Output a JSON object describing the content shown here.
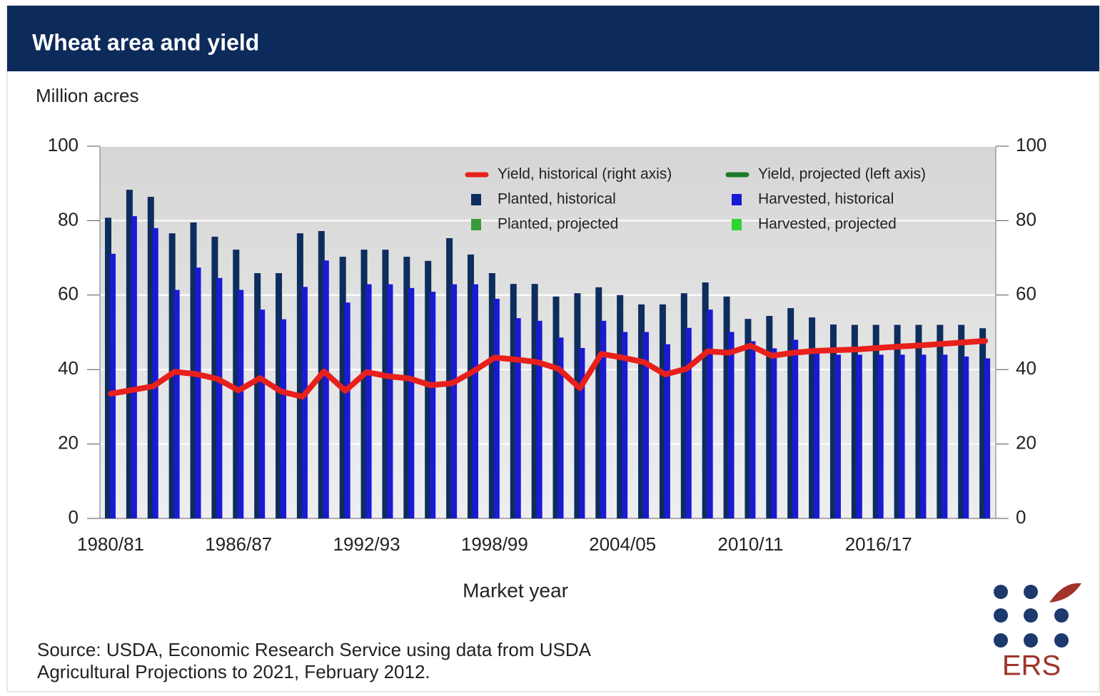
{
  "chart_data": {
    "type": "bar",
    "title": "Wheat area and yield",
    "y_label": "Million acres",
    "x_label": "Market year",
    "source": [
      "Source: USDA, Economic Research Service using data from USDA",
      "Agricultural Projections to 2021, February 2012."
    ],
    "logo": "ERS",
    "categories": [
      "1980/81",
      null,
      null,
      null,
      null,
      null,
      "1986/87",
      null,
      null,
      null,
      null,
      null,
      "1992/93",
      null,
      null,
      null,
      null,
      null,
      "1998/99",
      null,
      null,
      null,
      null,
      null,
      "2004/05",
      null,
      null,
      null,
      null,
      null,
      "2010/11",
      null,
      null,
      null,
      null,
      null,
      "2016/17",
      null,
      null,
      null,
      null,
      null
    ],
    "ylim": [
      0,
      100
    ],
    "yticks": [
      0,
      20,
      40,
      60,
      80,
      100
    ],
    "y2lim": [
      0,
      100
    ],
    "y2ticks": [
      0,
      20,
      40,
      60,
      80,
      100
    ],
    "grid": true,
    "legend": "top-right",
    "series": [
      {
        "name": "Yield, historical (right axis)",
        "color": "#e8201c",
        "mark": "line",
        "axis": "y2",
        "values": [
          33.5,
          34.5,
          35.5,
          39.4,
          38.8,
          37.5,
          34.4,
          37.7,
          34.1,
          32.7,
          39.5,
          34.3,
          39.3,
          38.2,
          37.6,
          35.8,
          36.3,
          39.5,
          43.2,
          42.7,
          42.0,
          40.2,
          35.0,
          44.2,
          43.2,
          42.0,
          38.7,
          40.2,
          44.9,
          44.5,
          46.4,
          43.7,
          44.5,
          45.0,
          45.2,
          45.4,
          45.8,
          46.2,
          46.5,
          46.9,
          47.3,
          47.7
        ]
      },
      {
        "name": "Yield, projected (left axis)",
        "color": "#1e7a2a",
        "mark": "line",
        "values": [
          null,
          null,
          null,
          null,
          null,
          null,
          null,
          null,
          null,
          null,
          null,
          null,
          null,
          null,
          null,
          null,
          null,
          null,
          null,
          null,
          null,
          null,
          null,
          null,
          null,
          null,
          null,
          null,
          null,
          null,
          null,
          null,
          null,
          null,
          null,
          null,
          null,
          null,
          null,
          null,
          null,
          null
        ]
      },
      {
        "name": "Planted, historical",
        "color": "#0d2d5e",
        "mark": "bar",
        "values": [
          80.8,
          88.3,
          86.4,
          76.6,
          79.5,
          75.7,
          72.2,
          65.9,
          65.9,
          76.6,
          77.2,
          70.3,
          72.2,
          72.2,
          70.3,
          69.2,
          75.3,
          70.9,
          65.9,
          63.0,
          63.0,
          59.6,
          60.5,
          62.1,
          60.0,
          57.5,
          57.5,
          60.5,
          63.4,
          59.6,
          53.6,
          54.4,
          56.5,
          54.0,
          52.1,
          52.0,
          52.0,
          52.0,
          52.0,
          52.0,
          52.0,
          51.1
        ]
      },
      {
        "name": "Harvested, historical",
        "color": "#1a1ad6",
        "mark": "bar",
        "values": [
          71.1,
          81.2,
          78.0,
          61.4,
          67.4,
          64.6,
          61.4,
          56.1,
          53.5,
          62.2,
          69.3,
          58.0,
          62.9,
          62.9,
          61.9,
          60.9,
          62.9,
          62.9,
          59.0,
          53.8,
          53.1,
          48.6,
          45.8,
          53.1,
          50.1,
          50.1,
          46.8,
          51.2,
          56.1,
          50.1,
          47.6,
          45.7,
          48.0,
          45.0,
          44.0,
          44.0,
          44.0,
          44.0,
          44.0,
          44.0,
          43.5,
          43.0
        ]
      },
      {
        "name": "Planted, projected",
        "color": "#3a9a3a",
        "mark": "bar",
        "values": [
          null,
          null,
          null,
          null,
          null,
          null,
          null,
          null,
          null,
          null,
          null,
          null,
          null,
          null,
          null,
          null,
          null,
          null,
          null,
          null,
          null,
          null,
          null,
          null,
          null,
          null,
          null,
          null,
          null,
          null,
          null,
          null,
          null,
          null,
          null,
          null,
          null,
          null,
          null,
          null,
          null,
          null
        ]
      },
      {
        "name": "Harvested, projected",
        "color": "#2ed42e",
        "mark": "bar",
        "values": [
          null,
          null,
          null,
          null,
          null,
          null,
          null,
          null,
          null,
          null,
          null,
          null,
          null,
          null,
          null,
          null,
          null,
          null,
          null,
          null,
          null,
          null,
          null,
          null,
          null,
          null,
          null,
          null,
          null,
          null,
          null,
          null,
          null,
          null,
          null,
          null,
          null,
          null,
          null,
          null,
          null,
          null
        ]
      }
    ]
  }
}
